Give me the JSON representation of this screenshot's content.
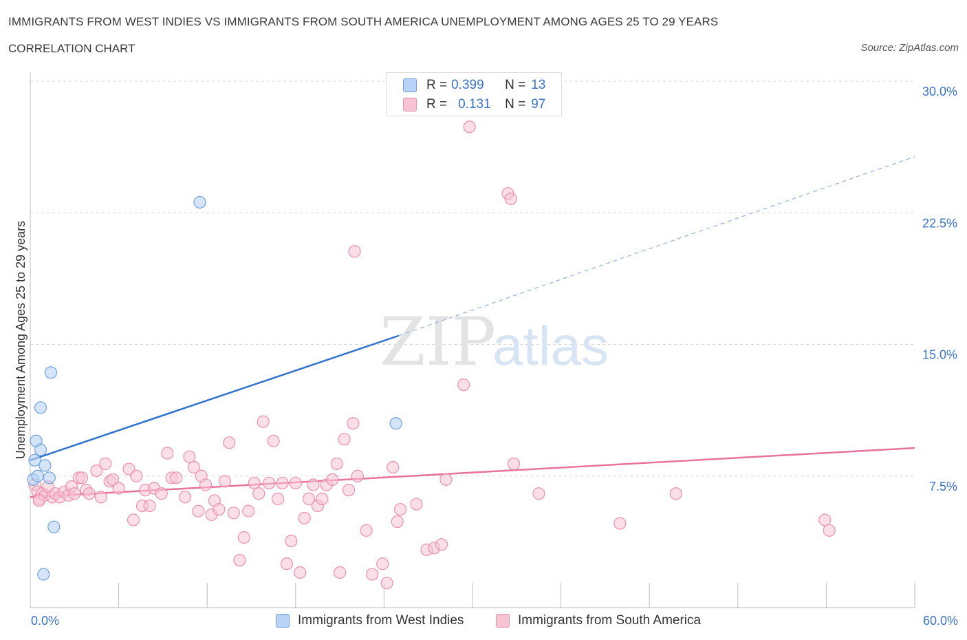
{
  "title": "IMMIGRANTS FROM WEST INDIES VS IMMIGRANTS FROM SOUTH AMERICA UNEMPLOYMENT AMONG AGES 25 TO 29 YEARS",
  "subtitle": "CORRELATION CHART",
  "source": "Source: ZipAtlas.com",
  "watermark": {
    "zip": "ZIP",
    "atlas": "atlas"
  },
  "legend": {
    "rows": [
      {
        "r_label": "R = ",
        "r_value": "0.399",
        "n_label": "N = ",
        "n_value": "13"
      },
      {
        "r_label": "R = ",
        "r_value": "0.131",
        "n_label": "N = ",
        "n_value": "97"
      }
    ]
  },
  "colors": {
    "blue_fill": "#b8d3f5",
    "blue_stroke": "#6fa0e0",
    "blue_line": "#2f72d0",
    "pink_fill": "#f7c4d4",
    "pink_stroke": "#eb8fae",
    "pink_line": "#e8729a",
    "axis_text": "#3a73c8",
    "grid": "#d8d8d8"
  },
  "chart_data": {
    "type": "scatter",
    "title": "IMMIGRANTS FROM WEST INDIES VS IMMIGRANTS FROM SOUTH AMERICA UNEMPLOYMENT AMONG AGES 25 TO 29 YEARS",
    "xlabel": "",
    "ylabel": "Unemployment Among Ages 25 to 29 years",
    "xlim": [
      0,
      60
    ],
    "ylim": [
      0,
      30
    ],
    "x_tick_labels": [
      "0.0%",
      "60.0%"
    ],
    "y_ticks": [
      7.5,
      15.0,
      22.5,
      30.0
    ],
    "y_tick_labels": [
      "7.5%",
      "15.0%",
      "22.5%",
      "30.0%"
    ],
    "grid": true,
    "series": [
      {
        "name": "Immigrants from West Indies",
        "color": "#b8d3f5",
        "points": [
          [
            0.2,
            7.3
          ],
          [
            0.3,
            8.4
          ],
          [
            0.4,
            9.5
          ],
          [
            0.5,
            7.5
          ],
          [
            0.7,
            11.4
          ],
          [
            0.7,
            9.0
          ],
          [
            0.9,
            1.9
          ],
          [
            1.0,
            8.1
          ],
          [
            1.3,
            7.4
          ],
          [
            1.4,
            13.4
          ],
          [
            1.6,
            4.6
          ],
          [
            11.5,
            23.1
          ],
          [
            24.8,
            10.5
          ]
        ],
        "trend": {
          "x0": 0,
          "y0": 8.4,
          "x1": 25,
          "y1": 15.5,
          "dashed_to_x": 60,
          "dashed_to_y": 25.7
        }
      },
      {
        "name": "Immigrants from South America",
        "color": "#f7c4d4",
        "points": [
          [
            0.3,
            7.0
          ],
          [
            0.5,
            6.6
          ],
          [
            0.6,
            6.2
          ],
          [
            0.8,
            6.5
          ],
          [
            1.0,
            6.4
          ],
          [
            1.2,
            6.9
          ],
          [
            1.5,
            6.3
          ],
          [
            1.7,
            6.5
          ],
          [
            2.0,
            6.3
          ],
          [
            2.3,
            6.6
          ],
          [
            2.6,
            6.4
          ],
          [
            2.8,
            6.9
          ],
          [
            3.0,
            6.5
          ],
          [
            3.3,
            7.4
          ],
          [
            3.5,
            7.4
          ],
          [
            3.8,
            6.7
          ],
          [
            4.0,
            6.5
          ],
          [
            4.5,
            7.8
          ],
          [
            4.8,
            6.3
          ],
          [
            5.1,
            8.2
          ],
          [
            5.4,
            7.2
          ],
          [
            5.6,
            7.3
          ],
          [
            6.0,
            6.8
          ],
          [
            6.7,
            7.9
          ],
          [
            7.0,
            5.0
          ],
          [
            7.6,
            5.8
          ],
          [
            7.2,
            7.5
          ],
          [
            7.8,
            6.7
          ],
          [
            8.1,
            5.8
          ],
          [
            8.4,
            6.8
          ],
          [
            8.9,
            6.5
          ],
          [
            9.3,
            8.8
          ],
          [
            9.6,
            7.4
          ],
          [
            9.9,
            7.4
          ],
          [
            10.5,
            6.3
          ],
          [
            10.8,
            8.6
          ],
          [
            11.1,
            8.0
          ],
          [
            11.4,
            5.5
          ],
          [
            11.6,
            7.5
          ],
          [
            11.9,
            7.0
          ],
          [
            12.3,
            5.3
          ],
          [
            12.5,
            6.1
          ],
          [
            12.8,
            5.6
          ],
          [
            13.2,
            7.2
          ],
          [
            13.5,
            9.4
          ],
          [
            13.8,
            5.4
          ],
          [
            14.2,
            2.7
          ],
          [
            14.5,
            4.0
          ],
          [
            14.8,
            5.5
          ],
          [
            15.2,
            7.1
          ],
          [
            15.5,
            6.5
          ],
          [
            15.8,
            10.6
          ],
          [
            16.2,
            7.1
          ],
          [
            16.5,
            9.5
          ],
          [
            16.8,
            6.2
          ],
          [
            17.1,
            7.1
          ],
          [
            17.4,
            2.5
          ],
          [
            17.7,
            3.8
          ],
          [
            18.0,
            7.1
          ],
          [
            18.3,
            2.0
          ],
          [
            18.6,
            5.1
          ],
          [
            18.9,
            6.2
          ],
          [
            19.2,
            7.0
          ],
          [
            19.5,
            5.8
          ],
          [
            19.8,
            6.2
          ],
          [
            20.1,
            7.0
          ],
          [
            20.5,
            7.3
          ],
          [
            20.8,
            8.2
          ],
          [
            21.0,
            2.0
          ],
          [
            21.3,
            9.6
          ],
          [
            21.6,
            6.7
          ],
          [
            21.9,
            10.5
          ],
          [
            22.2,
            7.5
          ],
          [
            22.8,
            4.4
          ],
          [
            23.2,
            1.9
          ],
          [
            23.9,
            2.5
          ],
          [
            24.2,
            1.4
          ],
          [
            24.6,
            8.0
          ],
          [
            24.9,
            4.9
          ],
          [
            25.1,
            5.6
          ],
          [
            26.2,
            5.9
          ],
          [
            26.9,
            3.3
          ],
          [
            27.4,
            3.4
          ],
          [
            27.9,
            3.6
          ],
          [
            28.2,
            7.3
          ],
          [
            29.4,
            12.7
          ],
          [
            29.8,
            27.4
          ],
          [
            32.4,
            23.6
          ],
          [
            32.6,
            23.3
          ],
          [
            32.8,
            8.2
          ],
          [
            34.5,
            6.5
          ],
          [
            22.0,
            20.3
          ],
          [
            40.0,
            4.8
          ],
          [
            43.8,
            6.5
          ],
          [
            53.9,
            5.0
          ],
          [
            54.2,
            4.4
          ],
          [
            0.6,
            6.1
          ]
        ],
        "trend": {
          "x0": 0,
          "y0": 6.3,
          "x1": 60,
          "y1": 9.1
        }
      }
    ]
  },
  "bottom_legend": [
    {
      "label": "Immigrants from West Indies"
    },
    {
      "label": "Immigrants from South America"
    }
  ]
}
